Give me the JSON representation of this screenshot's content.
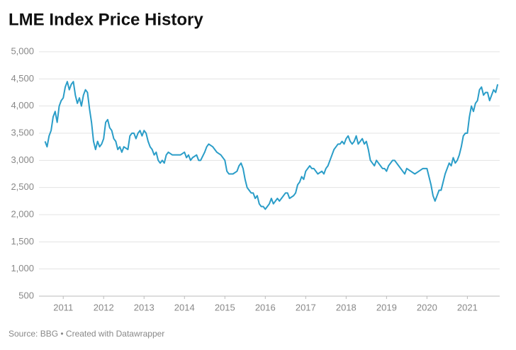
{
  "chart_data": {
    "type": "line",
    "title": "LME Index Price History",
    "source": "Source: BBG • Created with Datawrapper",
    "color": "#2a9dc8",
    "grid": true,
    "xlim": [
      2010.4,
      2021.8
    ],
    "xticks": [
      2011,
      2012,
      2013,
      2014,
      2015,
      2016,
      2017,
      2018,
      2019,
      2020,
      2021
    ],
    "ylim": [
      500,
      5000
    ],
    "yticks": [
      500,
      {
        "value": 1000,
        "label": "1,000"
      },
      {
        "value": 1500,
        "label": "1,500"
      },
      {
        "value": 2000,
        "label": "2,000"
      },
      {
        "value": 2500,
        "label": "2,500"
      },
      {
        "value": 3000,
        "label": "3,000"
      },
      {
        "value": 3500,
        "label": "3,500"
      },
      {
        "value": 4000,
        "label": "4,000"
      },
      {
        "value": 4500,
        "label": "4,500"
      },
      {
        "value": 5000,
        "label": "5,000"
      }
    ],
    "x": [
      2010.55,
      2010.6,
      2010.65,
      2010.7,
      2010.75,
      2010.8,
      2010.85,
      2010.9,
      2010.95,
      2011.0,
      2011.05,
      2011.1,
      2011.15,
      2011.2,
      2011.25,
      2011.3,
      2011.35,
      2011.4,
      2011.45,
      2011.5,
      2011.55,
      2011.6,
      2011.65,
      2011.7,
      2011.75,
      2011.8,
      2011.85,
      2011.9,
      2011.95,
      2012.0,
      2012.05,
      2012.1,
      2012.15,
      2012.2,
      2012.25,
      2012.3,
      2012.35,
      2012.4,
      2012.45,
      2012.5,
      2012.6,
      2012.65,
      2012.7,
      2012.75,
      2012.8,
      2012.85,
      2012.9,
      2012.95,
      2013.0,
      2013.05,
      2013.1,
      2013.15,
      2013.2,
      2013.25,
      2013.3,
      2013.35,
      2013.4,
      2013.45,
      2013.5,
      2013.55,
      2013.6,
      2013.7,
      2013.8,
      2013.9,
      2014.0,
      2014.05,
      2014.1,
      2014.15,
      2014.2,
      2014.3,
      2014.35,
      2014.4,
      2014.5,
      2014.55,
      2014.6,
      2014.7,
      2014.75,
      2014.8,
      2014.9,
      2015.0,
      2015.05,
      2015.1,
      2015.15,
      2015.2,
      2015.3,
      2015.35,
      2015.4,
      2015.45,
      2015.5,
      2015.55,
      2015.6,
      2015.65,
      2015.7,
      2015.75,
      2015.8,
      2015.85,
      2015.9,
      2015.95,
      2016.0,
      2016.05,
      2016.1,
      2016.15,
      2016.2,
      2016.3,
      2016.35,
      2016.4,
      2016.45,
      2016.5,
      2016.55,
      2016.6,
      2016.7,
      2016.75,
      2016.8,
      2016.85,
      2016.9,
      2016.95,
      2017.0,
      2017.05,
      2017.1,
      2017.15,
      2017.2,
      2017.3,
      2017.4,
      2017.45,
      2017.5,
      2017.55,
      2017.6,
      2017.65,
      2017.7,
      2017.75,
      2017.8,
      2017.85,
      2017.9,
      2017.95,
      2018.0,
      2018.05,
      2018.1,
      2018.15,
      2018.2,
      2018.25,
      2018.3,
      2018.35,
      2018.4,
      2018.45,
      2018.5,
      2018.55,
      2018.6,
      2018.65,
      2018.7,
      2018.75,
      2018.8,
      2018.85,
      2018.9,
      2018.95,
      2019.0,
      2019.05,
      2019.1,
      2019.15,
      2019.2,
      2019.25,
      2019.3,
      2019.35,
      2019.4,
      2019.45,
      2019.5,
      2019.6,
      2019.7,
      2019.8,
      2019.9,
      2020.0,
      2020.05,
      2020.1,
      2020.15,
      2020.2,
      2020.25,
      2020.3,
      2020.35,
      2020.4,
      2020.45,
      2020.5,
      2020.55,
      2020.6,
      2020.65,
      2020.7,
      2020.75,
      2020.8,
      2020.85,
      2020.9,
      2020.95,
      2021.0,
      2021.05,
      2021.1,
      2021.15,
      2021.2,
      2021.25,
      2021.3,
      2021.35,
      2021.4,
      2021.45,
      2021.5,
      2021.55,
      2021.6,
      2021.65,
      2021.7,
      2021.75
    ],
    "values": [
      3350,
      3250,
      3450,
      3550,
      3800,
      3900,
      3700,
      4000,
      4100,
      4150,
      4350,
      4450,
      4300,
      4400,
      4450,
      4200,
      4050,
      4150,
      4000,
      4200,
      4300,
      4250,
      3950,
      3700,
      3350,
      3200,
      3350,
      3250,
      3300,
      3400,
      3700,
      3750,
      3600,
      3550,
      3400,
      3350,
      3200,
      3250,
      3150,
      3250,
      3200,
      3450,
      3500,
      3500,
      3400,
      3500,
      3550,
      3450,
      3550,
      3500,
      3350,
      3250,
      3200,
      3100,
      3150,
      3000,
      2950,
      3000,
      2950,
      3100,
      3150,
      3100,
      3100,
      3100,
      3150,
      3050,
      3100,
      3000,
      3050,
      3100,
      3000,
      3000,
      3150,
      3250,
      3300,
      3250,
      3200,
      3150,
      3100,
      3000,
      2800,
      2750,
      2750,
      2750,
      2800,
      2900,
      2950,
      2850,
      2650,
      2500,
      2450,
      2400,
      2400,
      2300,
      2350,
      2200,
      2150,
      2150,
      2100,
      2150,
      2200,
      2300,
      2200,
      2300,
      2250,
      2300,
      2350,
      2400,
      2400,
      2300,
      2350,
      2400,
      2550,
      2600,
      2700,
      2650,
      2800,
      2850,
      2900,
      2850,
      2850,
      2750,
      2800,
      2750,
      2850,
      2900,
      3000,
      3100,
      3200,
      3250,
      3300,
      3300,
      3350,
      3300,
      3400,
      3450,
      3350,
      3300,
      3350,
      3450,
      3300,
      3350,
      3400,
      3300,
      3350,
      3200,
      3000,
      2950,
      2900,
      3000,
      2950,
      2900,
      2850,
      2850,
      2800,
      2900,
      2950,
      3000,
      3000,
      2950,
      2900,
      2850,
      2800,
      2750,
      2850,
      2800,
      2750,
      2800,
      2850,
      2850,
      2700,
      2550,
      2350,
      2250,
      2350,
      2450,
      2450,
      2600,
      2750,
      2850,
      2950,
      2900,
      3050,
      2950,
      3000,
      3100,
      3250,
      3450,
      3500,
      3500,
      3800,
      4000,
      3900,
      4050,
      4100,
      4300,
      4350,
      4200,
      4250,
      4250,
      4100,
      4200,
      4300,
      4250,
      4400
    ]
  }
}
